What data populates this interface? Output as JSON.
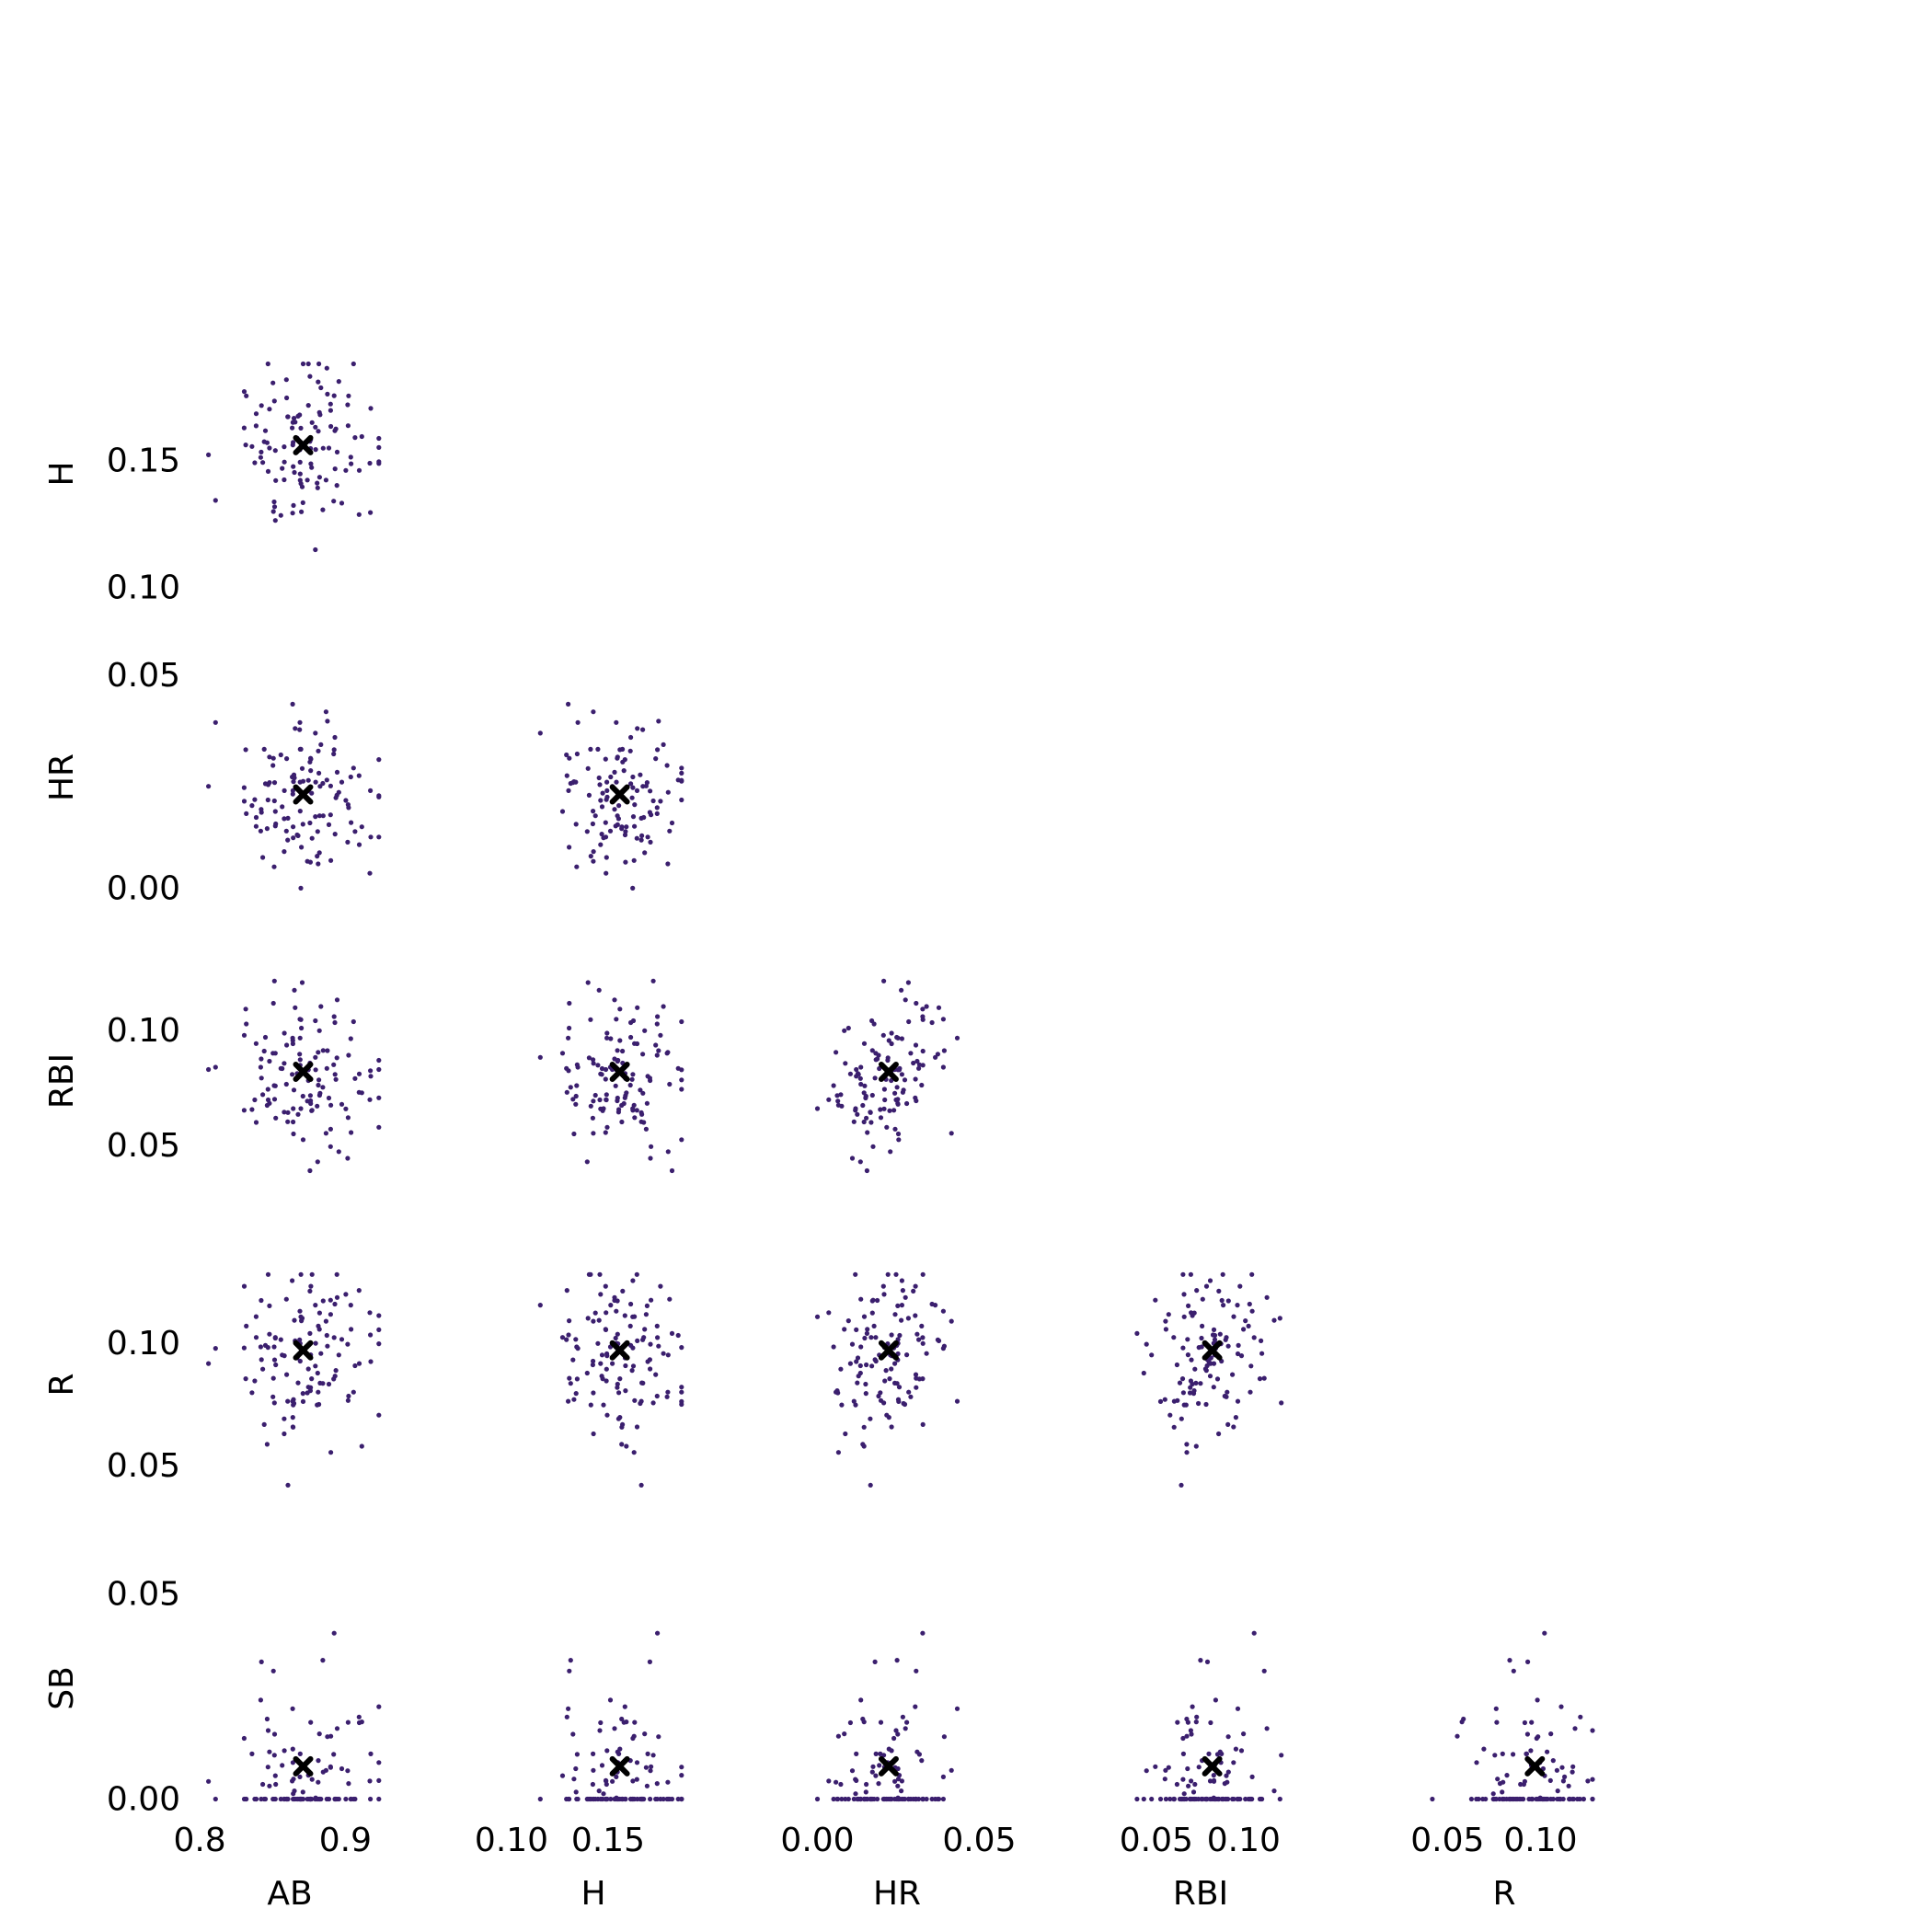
{
  "chart_data": {
    "type": "scatter",
    "variables": [
      "AB",
      "H",
      "HR",
      "RBI",
      "R",
      "SB"
    ],
    "rows": [
      "H",
      "HR",
      "RBI",
      "R",
      "SB"
    ],
    "cols": [
      "AB",
      "H",
      "HR",
      "RBI",
      "R"
    ],
    "point_color": "#3b1f6e",
    "marker_color": "#000000",
    "grid": false,
    "legend": "none",
    "ranges": {
      "AB": {
        "lim": [
          0.805,
          0.925
        ],
        "ticks": [
          {
            "v": 0.8,
            "label": "0.8"
          },
          {
            "v": 0.9,
            "label": "0.9"
          }
        ]
      },
      "H": {
        "lim": [
          0.0995,
          0.19
        ],
        "ticks": [
          {
            "v": 0.1,
            "label": "0.10"
          },
          {
            "v": 0.15,
            "label": "0.15"
          }
        ]
      },
      "HR": {
        "lim": [
          -0.001,
          0.053
        ],
        "ticks": [
          {
            "v": 0.0,
            "label": "0.00"
          },
          {
            "v": 0.05,
            "label": "0.05"
          }
        ]
      },
      "RBI": {
        "lim": [
          0.028,
          0.128
        ],
        "ticks": [
          {
            "v": 0.05,
            "label": "0.05"
          },
          {
            "v": 0.1,
            "label": "0.10"
          }
        ]
      },
      "R": {
        "lim": [
          0.036,
          0.13
        ],
        "ticks": [
          {
            "v": 0.05,
            "label": "0.05"
          },
          {
            "v": 0.1,
            "label": "0.10"
          }
        ]
      },
      "SB": {
        "lim": [
          -0.001,
          0.055
        ],
        "ticks": [
          {
            "v": 0.0,
            "label": "0.00"
          },
          {
            "v": 0.05,
            "label": "0.05"
          }
        ]
      }
    },
    "means": {
      "AB": 0.871,
      "H": 0.156,
      "HR": 0.022,
      "RBI": 0.082,
      "R": 0.097,
      "SB": 0.008
    },
    "sds": {
      "AB": 0.022,
      "H": 0.016,
      "HR": 0.009,
      "RBI": 0.018,
      "R": 0.018,
      "SB": 0.01
    },
    "n_points": 120,
    "seed": 7
  }
}
